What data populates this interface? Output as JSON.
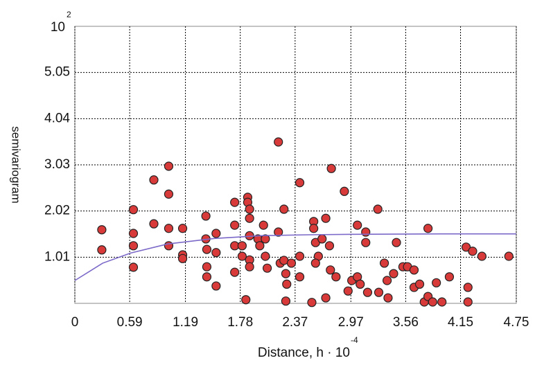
{
  "chart_data": {
    "type": "scatter",
    "ylabel": "semivariogram",
    "xlabel": {
      "text": "Distance, h · 10",
      "exponent": "-4"
    },
    "y_multiplier": {
      "base": "10",
      "exponent": "2"
    },
    "xlim": [
      0,
      4.75
    ],
    "ylim": [
      0,
      6.06
    ],
    "xticks": [
      0,
      0.59,
      1.19,
      1.78,
      2.37,
      2.97,
      3.56,
      4.15,
      4.75
    ],
    "yticks": [
      1.01,
      2.02,
      3.03,
      4.04,
      5.05
    ],
    "grid": true,
    "series": [
      {
        "type": "scatter",
        "color": "#d83a3a",
        "x": [
          0.29,
          0.29,
          0.63,
          0.63,
          0.63,
          0.63,
          0.85,
          0.85,
          1.01,
          1.01,
          1.01,
          1.01,
          1.16,
          1.16,
          1.16,
          1.41,
          1.41,
          1.42,
          1.42,
          1.42,
          1.52,
          1.52,
          1.52,
          1.72,
          1.72,
          1.72,
          1.72,
          1.8,
          1.8,
          1.86,
          1.86,
          1.88,
          1.88,
          1.88,
          1.88,
          1.88,
          1.97,
          1.99,
          2.03,
          2.05,
          2.05,
          2.07,
          1.84,
          2.19,
          2.19,
          2.21,
          2.25,
          2.25,
          2.27,
          2.28,
          2.27,
          2.42,
          2.42,
          2.42,
          2.57,
          2.57,
          2.55,
          2.59,
          2.62,
          2.66,
          2.7,
          2.74,
          2.75,
          2.76,
          2.81,
          2.9,
          2.94,
          2.98,
          3.04,
          3.04,
          3.07,
          3.13,
          3.13,
          3.15,
          3.26,
          3.27,
          3.33,
          3.36,
          3.37,
          3.43,
          3.46,
          3.53,
          3.58,
          3.65,
          3.65,
          3.71,
          3.76,
          3.8,
          3.8,
          3.85,
          3.89,
          3.95,
          4.03,
          4.21,
          4.23,
          4.23,
          4.28,
          4.38,
          4.67,
          2.7,
          2.59,
          2.33
        ],
        "values": [
          1.61,
          1.17,
          2.05,
          1.53,
          1.26,
          0.79,
          2.7,
          1.74,
          3.0,
          2.39,
          1.64,
          1.26,
          1.64,
          1.06,
          0.98,
          1.91,
          1.41,
          1.18,
          0.8,
          0.58,
          1.53,
          1.11,
          0.38,
          2.21,
          1.71,
          1.26,
          0.68,
          1.26,
          1.03,
          2.32,
          2.21,
          2.06,
          1.86,
          1.48,
          0.95,
          0.8,
          1.41,
          1.26,
          1.71,
          1.41,
          1.03,
          0.77,
          0.08,
          3.53,
          1.56,
          0.88,
          2.06,
          0.94,
          0.65,
          0.42,
          0.05,
          2.64,
          1.03,
          0.58,
          1.79,
          1.64,
          0.02,
          1.33,
          1.03,
          1.41,
          1.86,
          1.26,
          0.73,
          2.95,
          0.58,
          2.45,
          0.27,
          0.5,
          1.71,
          0.58,
          0.42,
          1.33,
          1.56,
          0.24,
          2.06,
          0.24,
          0.88,
          0.5,
          0.12,
          0.65,
          1.33,
          0.8,
          0.8,
          0.73,
          0.35,
          0.42,
          0.03,
          1.64,
          0.15,
          0.03,
          0.45,
          0.03,
          0.58,
          1.23,
          0.35,
          0.03,
          1.14,
          1.03,
          1.03,
          0.12,
          0.88,
          0.88
        ]
      },
      {
        "type": "line",
        "color": "#7b68c8",
        "x": [
          0,
          0.3,
          0.6,
          1.0,
          1.5,
          2.0,
          2.5,
          3.0,
          4.0,
          4.75
        ],
        "values": [
          0.5,
          0.88,
          1.1,
          1.3,
          1.42,
          1.48,
          1.5,
          1.51,
          1.52,
          1.52
        ]
      }
    ]
  }
}
